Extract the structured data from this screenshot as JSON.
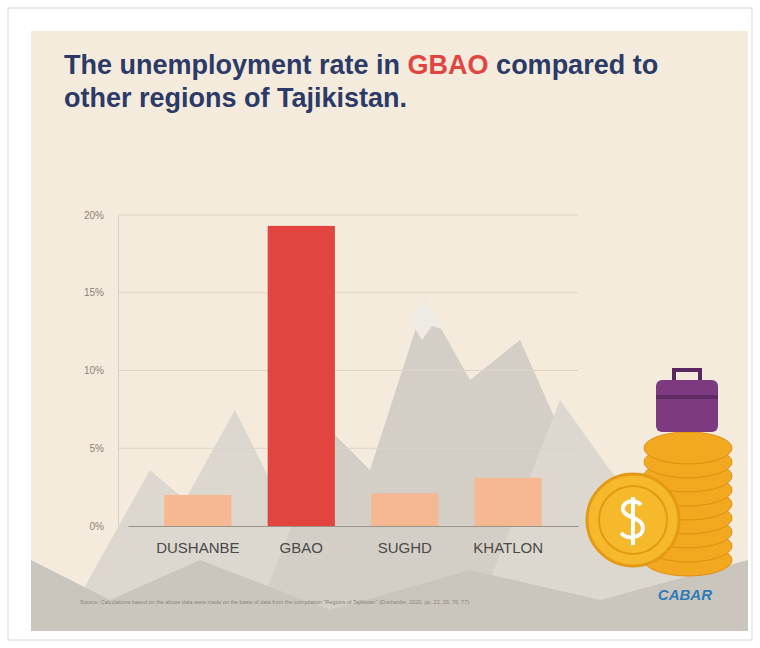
{
  "chart_data": {
    "type": "bar",
    "title": "The unemployment rate in GBAO compared to other regions of Tajikistan.",
    "categories": [
      "DUSHANBE",
      "GBAO",
      "SUGHD",
      "KHATLON"
    ],
    "values": [
      2,
      19.3,
      2.1,
      3.1
    ],
    "colors": [
      "#f5b892",
      "#e2443f",
      "#f5b892",
      "#f5b892"
    ],
    "ylim": [
      0,
      20
    ],
    "yticks": [
      {
        "value": 0,
        "label": "0%"
      },
      {
        "value": 5,
        "label": "5%"
      },
      {
        "value": 10,
        "label": "10%"
      },
      {
        "value": 15,
        "label": "15%"
      },
      {
        "value": 20,
        "label": "20%"
      }
    ],
    "grid": true,
    "source": "Source: Calculations based on the above data were made on the basis of data from the compilation \"Regions of Tajikistan\" (Dushanbe, 2020, pp. 22, 33, 76, 77)",
    "annotations": [
      "CABAR"
    ]
  }
}
